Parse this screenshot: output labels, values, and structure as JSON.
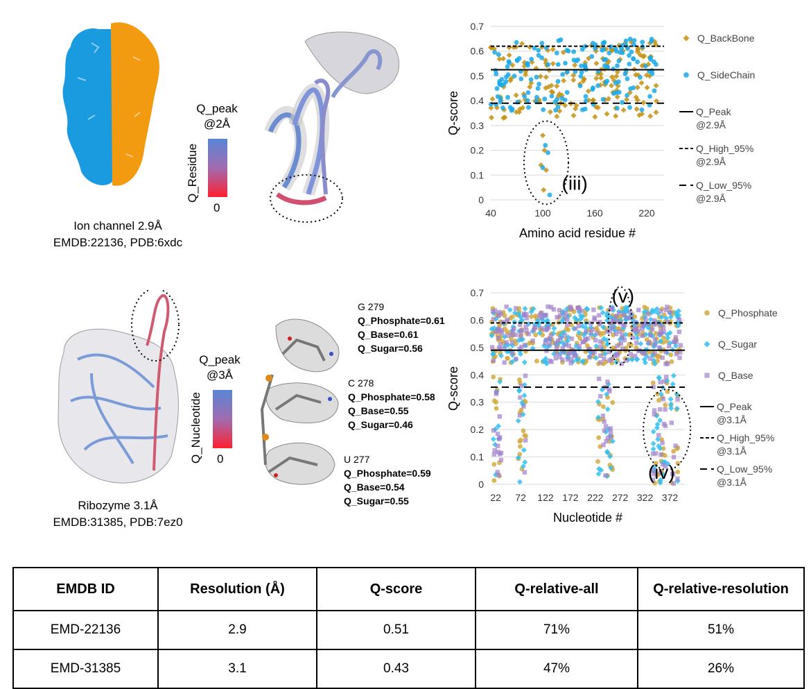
{
  "panel_top": {
    "caption": [
      "Ion channel 2.9Å",
      "EMDB:22136, PDB:6xdc"
    ],
    "colorbar": {
      "title": [
        "Q_peak",
        "@2Å"
      ],
      "label": "Q_Residue",
      "min": "0"
    },
    "colors": {
      "chain_a": "#1a9be0",
      "chain_b": "#f29a10"
    }
  },
  "panel_bottom": {
    "caption": [
      "Ribozyme 3.1Å",
      "EMDB:31385, PDB:7ez0"
    ],
    "colorbar": {
      "title": [
        "Q_peak",
        "@3Å"
      ],
      "label": "Q_Nucleotide",
      "min": "0"
    },
    "nucleotides": [
      {
        "name": "G 279",
        "lines": [
          "Q_Phosphate=0.61",
          "Q_Base=0.61",
          "Q_Sugar=0.56"
        ]
      },
      {
        "name": "C 278",
        "lines": [
          "Q_Phosphate=0.58",
          "Q_Base=0.55",
          "Q_Sugar=0.46"
        ]
      },
      {
        "name": "U 277",
        "lines": [
          "Q_Phosphate=0.59",
          "Q_Base=0.54",
          "Q_Sugar=0.55"
        ]
      }
    ]
  },
  "chart_data": [
    {
      "type": "scatter",
      "xlabel": "Amino acid residue #",
      "ylabel": "Q-score",
      "xlim": [
        40,
        240
      ],
      "ylim": [
        0,
        0.7
      ],
      "x_ticks": [
        "40",
        "100",
        "160",
        "220"
      ],
      "y_ticks": [
        "0",
        "0.1",
        "0.2",
        "0.3",
        "0.4",
        "0.5",
        "0.6",
        "0.7"
      ],
      "annotation": "(iii)",
      "series": [
        {
          "name": "Q_BackBone",
          "color": "#c49010",
          "marker": "diamond"
        },
        {
          "name": "Q_SideChain",
          "color": "#1aa8e8",
          "marker": "circle"
        }
      ],
      "reference_lines": [
        {
          "name": "Q_Peak @2.9Å",
          "value": 0.525,
          "style": "solid"
        },
        {
          "name": "Q_High_95% @2.9Å",
          "value": 0.62,
          "style": "short-dash"
        },
        {
          "name": "Q_Low_95% @2.9Å",
          "value": 0.39,
          "style": "long-dash"
        }
      ]
    },
    {
      "type": "scatter",
      "xlabel": "Nucleotide #",
      "ylabel": "Q-score",
      "xlim": [
        12,
        402
      ],
      "ylim": [
        0,
        0.7
      ],
      "x_ticks": [
        "22",
        "72",
        "122",
        "172",
        "222",
        "272",
        "322",
        "372"
      ],
      "y_ticks": [
        "0",
        "0.1",
        "0.2",
        "0.3",
        "0.4",
        "0.5",
        "0.6",
        "0.7"
      ],
      "annotations": [
        "(v)",
        "(iv)"
      ],
      "series": [
        {
          "name": "Q_Phosphate",
          "color": "#d4aa40",
          "marker": "circle"
        },
        {
          "name": "Q_Sugar",
          "color": "#34c0f0",
          "marker": "diamond"
        },
        {
          "name": "Q_Base",
          "color": "#a080cc",
          "marker": "square"
        }
      ],
      "reference_lines": [
        {
          "name": "Q_Peak @3.1Å",
          "value": 0.49,
          "style": "solid"
        },
        {
          "name": "Q_High_95% @3.1Å",
          "value": 0.59,
          "style": "short-dash"
        },
        {
          "name": "Q_Low_95% @3.1Å",
          "value": 0.355,
          "style": "long-dash"
        }
      ]
    }
  ],
  "table": {
    "headers": [
      "EMDB ID",
      "Resolution (Å)",
      "Q-score",
      "Q-relative-all",
      "Q-relative-resolution"
    ],
    "rows": [
      [
        "EMD-22136",
        "2.9",
        "0.51",
        "71%",
        "51%"
      ],
      [
        "EMD-31385",
        "3.1",
        "0.43",
        "47%",
        "26%"
      ]
    ]
  }
}
